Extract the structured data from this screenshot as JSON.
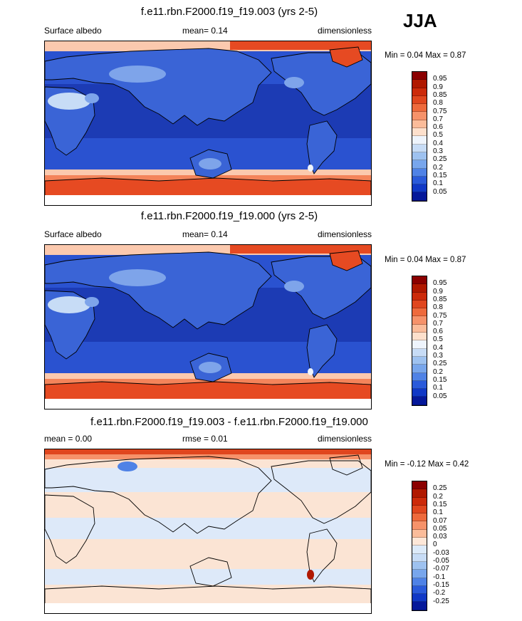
{
  "season": "JJA",
  "panels": [
    {
      "title": "f.e11.rbn.F2000.f19_f19.003 (yrs 2-5)",
      "left_label": "Surface albedo",
      "mid_label": "mean=   0.14",
      "right_label": "dimensionless",
      "minmax": "Min =   0.04 Max =   0.87",
      "variable": "albedo"
    },
    {
      "title": "f.e11.rbn.F2000.f19_f19.000 (yrs 2-5)",
      "left_label": "Surface albedo",
      "mid_label": "mean=   0.14",
      "right_label": "dimensionless",
      "minmax": "Min =   0.04 Max =   0.87",
      "variable": "albedo"
    },
    {
      "title": "f.e11.rbn.F2000.f19_f19.003 - f.e11.rbn.F2000.f19_f19.000",
      "left_label": "mean =   0.00",
      "mid_label": "rmse =   0.01",
      "right_label": "dimensionless",
      "minmax": "Min =  -0.12 Max =   0.42",
      "variable": "difference"
    }
  ],
  "colorbars": {
    "albedo": {
      "levels": [
        "0.95",
        "0.9",
        "0.85",
        "0.8",
        "0.75",
        "0.7",
        "0.6",
        "0.5",
        "0.4",
        "0.3",
        "0.25",
        "0.2",
        "0.15",
        "0.1",
        "0.05"
      ],
      "colors": [
        "#8b0000",
        "#b01800",
        "#cc2a0a",
        "#e0461e",
        "#ee6a3c",
        "#f6926a",
        "#fbbc9a",
        "#fde0cc",
        "#eef4fc",
        "#c7dcf6",
        "#9ec2f0",
        "#78a6ec",
        "#4f82e6",
        "#2a5ada",
        "#1038c6",
        "#05189a"
      ]
    },
    "difference": {
      "levels": [
        "0.25",
        "0.2",
        "0.15",
        "0.1",
        "0.07",
        "0.05",
        "0.03",
        "0",
        "-0.03",
        "-0.05",
        "-0.07",
        "-0.1",
        "-0.15",
        "-0.2",
        "-0.25"
      ],
      "colors": [
        "#8b0000",
        "#b01800",
        "#cc2a0a",
        "#e0461e",
        "#ee6a3c",
        "#f6926a",
        "#fbbc9a",
        "#fde7d8",
        "#dceaf9",
        "#c7dcf6",
        "#9ec2f0",
        "#78a6ec",
        "#4f82e6",
        "#2a5ada",
        "#1038c6",
        "#05189a"
      ]
    }
  },
  "colors": {
    "ocean_dark": "#1c3bb4",
    "ocean_mid": "#2a52d0",
    "land_blue": "#3a64d6",
    "land_light": "#7ea4ea",
    "desert": "#c7dcf6",
    "ice_red": "#e64a22",
    "ice_orange": "#f4845a",
    "ice_pale": "#fbc9ae",
    "diff_base": "#fbe4d4",
    "diff_light": "#dde9f9"
  }
}
